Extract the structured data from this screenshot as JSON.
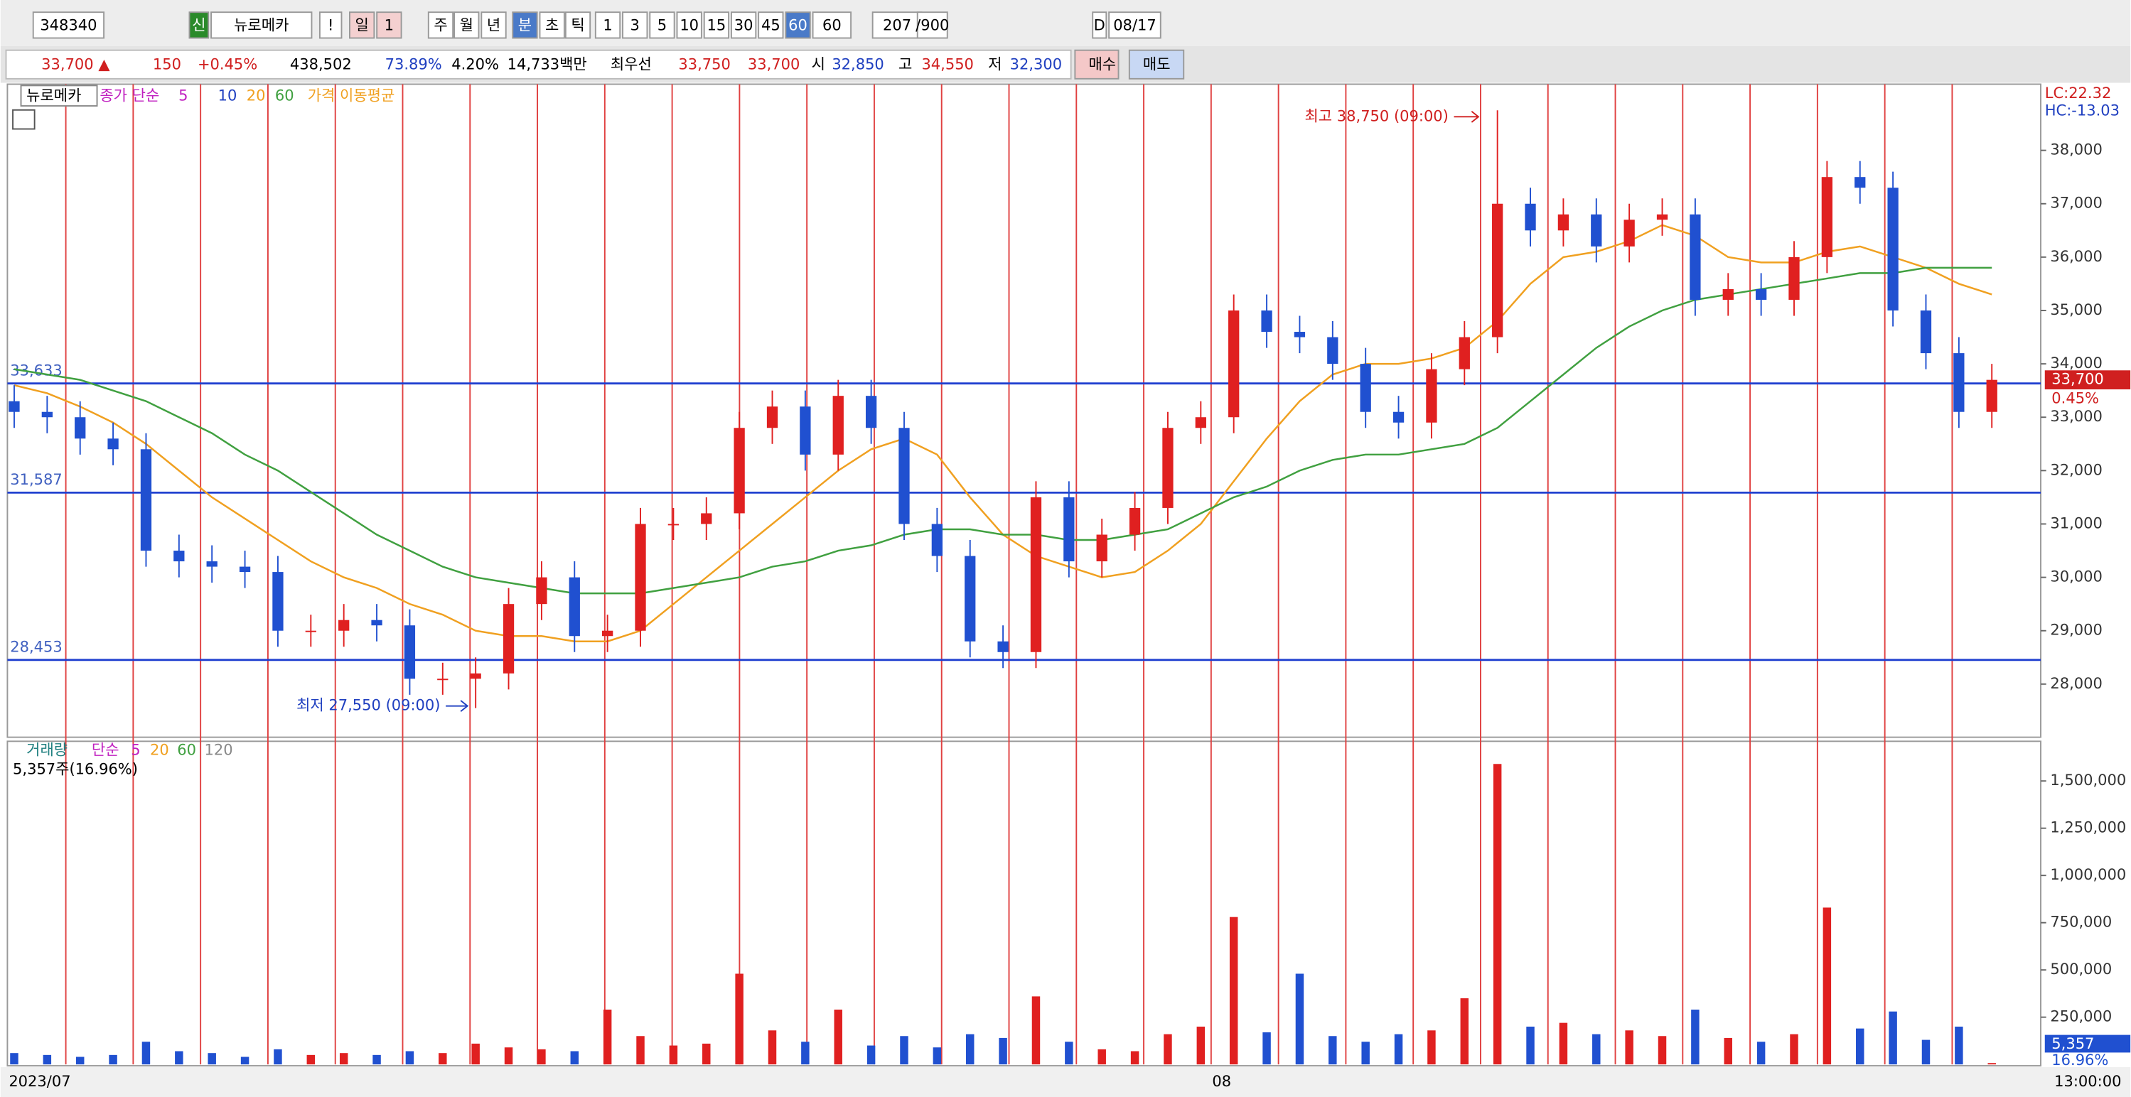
{
  "toolbar": {
    "row1": [
      "348340",
      "신",
      "뉴로메카",
      "!",
      "일",
      "1",
      "주",
      "월",
      "년",
      "분",
      "초",
      "틱",
      "1",
      "3",
      "5",
      "10",
      "15",
      "30",
      "45",
      "60",
      "60",
      "207",
      "/900",
      "D",
      "08/17"
    ],
    "row2": [
      "33,700 ▲",
      "150",
      "+0.45%",
      "438,502",
      "73.89%",
      "4.20%",
      "14,733백만",
      "최우선",
      "33,750",
      "33,700",
      "시",
      "32,850",
      "고",
      "34,550",
      "저",
      "32,300",
      "매수",
      "매도"
    ]
  },
  "chart_data": [
    {
      "type": "candlestick",
      "title": "뉴로메카",
      "ma_legend": [
        "종가 단순",
        "5",
        "10",
        "20",
        "60",
        "가격 이동평균"
      ],
      "open": [
        33300,
        33100,
        33000,
        32600,
        32400,
        30500,
        30300,
        30200,
        30100,
        29000,
        29000,
        29200,
        29100,
        28100,
        28100,
        28200,
        29500,
        30000,
        28900,
        29000,
        31000,
        31000,
        31200,
        32800,
        33200,
        32300,
        33400,
        32800,
        31000,
        30400,
        28800,
        28600,
        31500,
        30300,
        30800,
        31300,
        32800,
        33000,
        35000,
        34600,
        34500,
        34000,
        33100,
        32900,
        33900,
        34500,
        37000,
        36500,
        36800,
        36200,
        36700,
        36800,
        35200,
        35400,
        35200,
        36000,
        37500,
        37300,
        35000,
        34200,
        33100
      ],
      "high": [
        33600,
        33400,
        33300,
        32900,
        32700,
        30800,
        30600,
        30500,
        30400,
        29300,
        29500,
        29500,
        29400,
        28400,
        28500,
        29800,
        30300,
        30300,
        29300,
        31300,
        31300,
        31500,
        33100,
        33500,
        33500,
        33700,
        33700,
        33100,
        31300,
        30700,
        29100,
        31800,
        31800,
        31100,
        31600,
        33100,
        33300,
        35300,
        35300,
        34900,
        34800,
        34300,
        33400,
        34200,
        34800,
        38750,
        37300,
        37100,
        37100,
        37000,
        37100,
        37100,
        35700,
        35700,
        36300,
        37800,
        37800,
        37600,
        35300,
        34500,
        34000
      ],
      "low": [
        32800,
        32700,
        32300,
        32100,
        30200,
        30000,
        29900,
        29800,
        28700,
        28700,
        28700,
        28800,
        27800,
        27800,
        27550,
        27900,
        29200,
        28600,
        28600,
        28700,
        30700,
        30700,
        30900,
        32500,
        32000,
        32000,
        32500,
        30700,
        30100,
        28500,
        28300,
        28300,
        30000,
        30000,
        30500,
        31000,
        32500,
        32700,
        34300,
        34200,
        33700,
        32800,
        32600,
        32600,
        33600,
        34200,
        36200,
        36200,
        35900,
        35900,
        36400,
        34900,
        34900,
        34900,
        34900,
        35700,
        37000,
        34700,
        33900,
        32800,
        32800
      ],
      "close": [
        33100,
        33000,
        32600,
        32400,
        30500,
        30300,
        30200,
        30100,
        29000,
        29000,
        29200,
        29100,
        28100,
        28100,
        28200,
        29500,
        30000,
        28900,
        29000,
        31000,
        31000,
        31200,
        32800,
        33200,
        32300,
        33400,
        32800,
        31000,
        30400,
        28800,
        28600,
        31500,
        30300,
        30800,
        31300,
        32800,
        33000,
        35000,
        34600,
        34500,
        34000,
        33100,
        32900,
        33900,
        34500,
        37000,
        36500,
        36800,
        36200,
        36700,
        36800,
        35200,
        35400,
        35200,
        36000,
        37500,
        37300,
        35000,
        34200,
        33100,
        33700
      ],
      "ma_series": [
        {
          "name": "20",
          "color": "#f0a020",
          "values": [
            33600,
            33450,
            33200,
            32900,
            32500,
            32000,
            31500,
            31100,
            30700,
            30300,
            30000,
            29800,
            29500,
            29300,
            29000,
            28900,
            28900,
            28800,
            28800,
            29000,
            29500,
            30000,
            30500,
            31000,
            31500,
            32000,
            32400,
            32600,
            32300,
            31500,
            30800,
            30400,
            30200,
            30000,
            30100,
            30500,
            31000,
            31800,
            32600,
            33300,
            33800,
            34000,
            34000,
            34100,
            34300,
            34800,
            35500,
            36000,
            36100,
            36300,
            36600,
            36400,
            36000,
            35900,
            35900,
            36100,
            36200,
            36000,
            35800,
            35500,
            35300
          ]
        },
        {
          "name": "60",
          "color": "#40a040",
          "values": [
            33900,
            33800,
            33700,
            33500,
            33300,
            33000,
            32700,
            32300,
            32000,
            31600,
            31200,
            30800,
            30500,
            30200,
            30000,
            29900,
            29800,
            29700,
            29700,
            29700,
            29800,
            29900,
            30000,
            30200,
            30300,
            30500,
            30600,
            30800,
            30900,
            30900,
            30800,
            30800,
            30700,
            30700,
            30800,
            30900,
            31200,
            31500,
            31700,
            32000,
            32200,
            32300,
            32300,
            32400,
            32500,
            32800,
            33300,
            33800,
            34300,
            34700,
            35000,
            35200,
            35300,
            35400,
            35500,
            35600,
            35700,
            35700,
            35800,
            35800,
            35800
          ]
        }
      ],
      "ylim": [
        27030,
        39240
      ],
      "yticks": [
        {
          "value": 28000,
          "label": "28,000"
        },
        {
          "value": 29000,
          "label": "29,000"
        },
        {
          "value": 30000,
          "label": "30,000"
        },
        {
          "value": 31000,
          "label": "31,000"
        },
        {
          "value": 32000,
          "label": "32,000"
        },
        {
          "value": 33000,
          "label": "33,000"
        },
        {
          "value": 34000,
          "label": "34,000"
        },
        {
          "value": 35000,
          "label": "35,000"
        },
        {
          "value": 36000,
          "label": "36,000"
        },
        {
          "value": 37000,
          "label": "37,000"
        },
        {
          "value": 38000,
          "label": "38,000"
        }
      ],
      "levels": [
        {
          "value": 33633,
          "label": "33,633"
        },
        {
          "value": 31587,
          "label": "31,587"
        },
        {
          "value": 28453,
          "label": "28,453"
        }
      ],
      "price_tag": {
        "value": 33700,
        "label": "33,700"
      },
      "price_pct": "0.45%",
      "corner": [
        "LC:22.32",
        "HC:-13.03"
      ],
      "annotations": [
        "최고 38,750 (09:00)",
        "최저 27,550 (09:00)"
      ],
      "x_labels": [
        "2023/07",
        "08",
        "13:00:00"
      ]
    },
    {
      "type": "bar",
      "legend": [
        "거래량",
        "단순",
        "5",
        "20",
        "60",
        "120"
      ],
      "info": "5,357주(16.96%)",
      "values": [
        60000,
        50000,
        40000,
        50000,
        120000,
        70000,
        60000,
        40000,
        80000,
        50000,
        60000,
        50000,
        70000,
        60000,
        110000,
        90000,
        80000,
        70000,
        290000,
        150000,
        100000,
        110000,
        480000,
        180000,
        120000,
        290000,
        100000,
        150000,
        90000,
        160000,
        140000,
        360000,
        120000,
        80000,
        70000,
        160000,
        200000,
        780000,
        170000,
        480000,
        150000,
        120000,
        160000,
        180000,
        350000,
        1590000,
        200000,
        220000,
        160000,
        180000,
        150000,
        290000,
        140000,
        120000,
        160000,
        830000,
        190000,
        280000,
        130000,
        200000,
        5357
      ],
      "ylim": [
        0,
        1710000
      ],
      "yticks": [
        {
          "value": 250000,
          "label": "250,000"
        },
        {
          "value": 500000,
          "label": "500,000"
        },
        {
          "value": 750000,
          "label": "750,000"
        },
        {
          "value": 1000000,
          "label": "1,000,000"
        },
        {
          "value": 1250000,
          "label": "1,250,000"
        },
        {
          "value": 1500000,
          "label": "1,500,000"
        }
      ],
      "last_tag": {
        "value": 5357,
        "label": "5,357"
      },
      "last_pct": "16.96%"
    }
  ]
}
